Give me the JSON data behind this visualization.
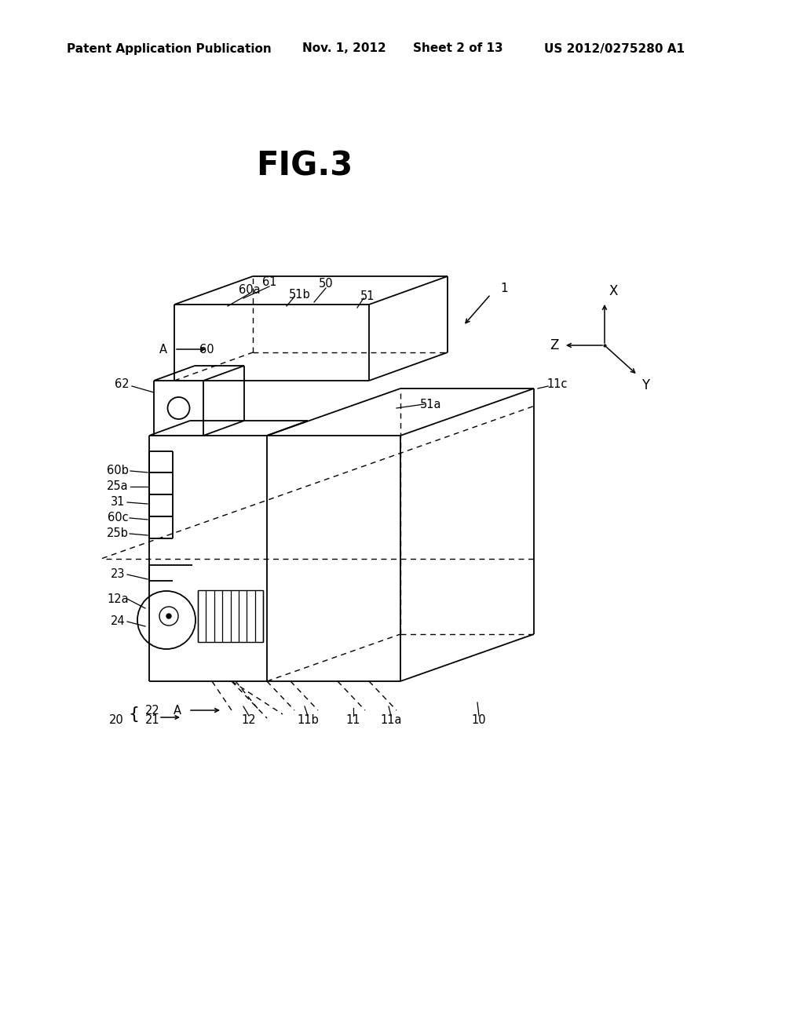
{
  "bg_color": "#ffffff",
  "header_text": "Patent Application Publication",
  "header_date": "Nov. 1, 2012",
  "header_sheet": "Sheet 2 of 13",
  "header_patent": "US 2012/0275280 A1",
  "fig_label": "FIG.3"
}
